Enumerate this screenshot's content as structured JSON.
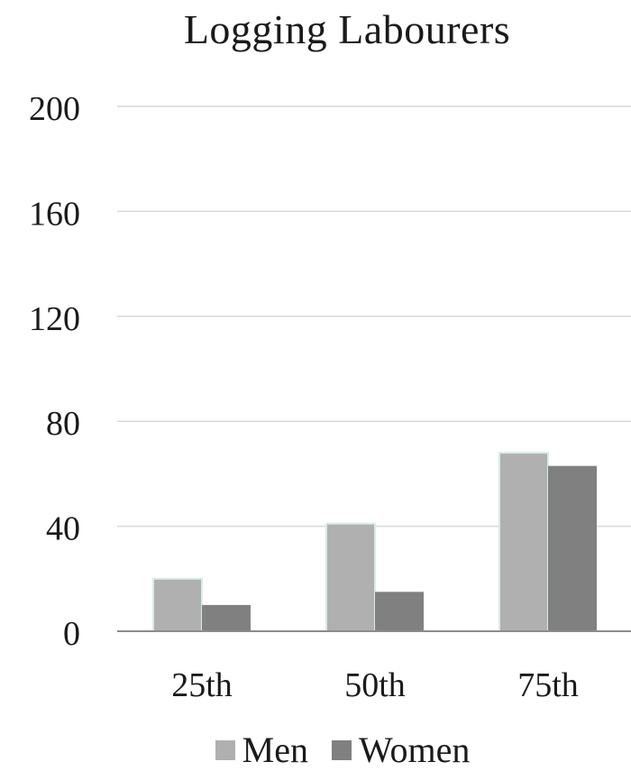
{
  "chart_data": {
    "type": "bar",
    "title": "Logging Labourers",
    "categories": [
      "25th",
      "50th",
      "75th"
    ],
    "series": [
      {
        "name": "Men",
        "values": [
          20,
          41,
          68
        ],
        "color": "#b0b0b0"
      },
      {
        "name": "Women",
        "values": [
          10,
          15,
          63
        ],
        "color": "#808080"
      }
    ],
    "ylim": [
      0,
      200
    ],
    "yticks": [
      0,
      40,
      80,
      120,
      160,
      200
    ],
    "grid": true,
    "legend_position": "bottom"
  }
}
